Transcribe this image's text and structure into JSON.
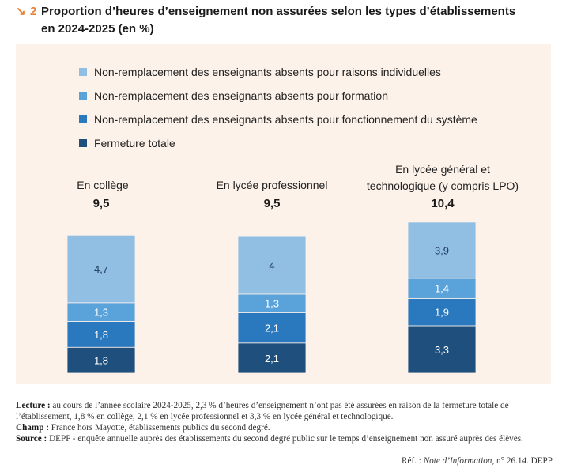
{
  "header": {
    "arrow_glyph": "↘",
    "figure_number": "2",
    "title_line1": "Proportion d’heures d’enseignement non assurées selon les types d’établissements",
    "title_line2": "en 2024-2025 (en %)"
  },
  "chart_data": {
    "type": "bar",
    "stacked": true,
    "title": "Proportion d’heures d’enseignement non assurées selon les types d’établissements en 2024-2025 (en %)",
    "legend_position": "top-left",
    "categories": [
      "En collège",
      "En lycée professionnel",
      "En lycée général et technologique (y compris LPO)"
    ],
    "category_lines": [
      [
        "En collège"
      ],
      [
        "En lycée professionnel"
      ],
      [
        "En lycée général et",
        "technologique (y compris LPO)"
      ]
    ],
    "totals": [
      "9,5",
      "9,5",
      "10,4"
    ],
    "series": [
      {
        "name": "Non-remplacement des enseignants absents pour raisons individuelles",
        "color": "#91bfe3",
        "values": [
          4.7,
          4.0,
          3.9
        ],
        "labels": [
          "4,7",
          "4",
          "3,9"
        ]
      },
      {
        "name": "Non-remplacement des enseignants absents pour formation",
        "color": "#5aa2da",
        "values": [
          1.3,
          1.3,
          1.4
        ],
        "labels": [
          "1,3",
          "1,3",
          "1,4"
        ]
      },
      {
        "name": "Non-remplacement des enseignants absents pour fonctionnement du système",
        "color": "#2a78bd",
        "values": [
          1.8,
          2.1,
          1.9
        ],
        "labels": [
          "1,8",
          "2,1",
          "1,9"
        ]
      },
      {
        "name": "Fermeture totale",
        "color": "#1f4f7d",
        "values": [
          1.8,
          2.1,
          3.3
        ],
        "labels": [
          "1,8",
          "2,1",
          "3,3"
        ]
      }
    ]
  },
  "notes": {
    "lecture_label": "Lecture :",
    "lecture_text": " au cours de l’année scolaire 2024-2025, 2,3 % d’heures d’enseignement n’ont pas été assurées en raison de la fermeture totale de l’établissement, 1,8 % en collège, 2,1 % en lycée professionnel et 3,3 % en lycée général et technologique.",
    "champ_label": "Champ :",
    "champ_text": " France hors Mayotte, établissements publics du second degré.",
    "source_label": "Source :",
    "source_text": " DEPP - enquête annuelle auprès des établissements du second degré public sur le temps d’enseignement non assuré auprès des élèves."
  },
  "reference": {
    "prefix": "Réf. : ",
    "publication": "Note d’Information",
    "suffix": ", n° 26.14. DEPP"
  }
}
